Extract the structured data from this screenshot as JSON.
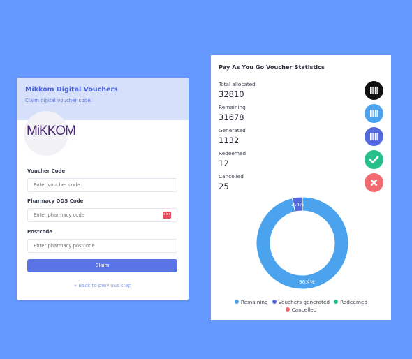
{
  "claim": {
    "title": "Mikkom Digital Vouchers",
    "subtitle": "Claim digital voucher code.",
    "logo_text": "MiKKOM",
    "fields": [
      {
        "label": "Voucher Code",
        "placeholder": "Enter voucher code"
      },
      {
        "label": "Pharmacy ODS Code",
        "placeholder": "Enter pharmacy code"
      },
      {
        "label": "Postcode",
        "placeholder": "Enter pharmacy postcode"
      }
    ],
    "claim_button": "Claim",
    "back_link": "« Back to previous step"
  },
  "stats": {
    "title": "Pay As You Go Voucher Statistics",
    "items": [
      {
        "label": "Total allocated",
        "value": "32810",
        "icon": "barcode-icon",
        "color": "#111111"
      },
      {
        "label": "Remaining",
        "value": "31678",
        "icon": "barcode-icon",
        "color": "#4aa3ec"
      },
      {
        "label": "Generated",
        "value": "1132",
        "icon": "barcode-icon",
        "color": "#5468dd"
      },
      {
        "label": "Redeemed",
        "value": "12",
        "icon": "check-icon",
        "color": "#27c08a"
      },
      {
        "label": "Cancelled",
        "value": "25",
        "icon": "close-icon",
        "color": "#f06a6f"
      }
    ]
  },
  "chart_data": {
    "type": "pie",
    "donut": true,
    "categories": [
      "Remaining",
      "Vouchers generated",
      "Redeemed",
      "Cancelled"
    ],
    "values": [
      31678,
      1132,
      12,
      25
    ],
    "data_labels": [
      "96.4%",
      "3.4%",
      "",
      ""
    ],
    "colors": [
      "#4aa3ec",
      "#5468dd",
      "#27c08a",
      "#f06a6f"
    ],
    "legend_position": "bottom"
  }
}
